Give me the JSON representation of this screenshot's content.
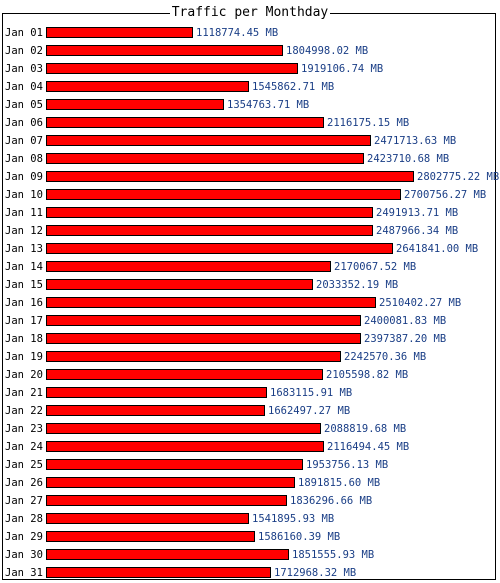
{
  "chart_data": {
    "type": "bar",
    "orientation": "horizontal",
    "title": "Traffic per Monthday",
    "categories": [
      "Jan 01",
      "Jan 02",
      "Jan 03",
      "Jan 04",
      "Jan 05",
      "Jan 06",
      "Jan 07",
      "Jan 08",
      "Jan 09",
      "Jan 10",
      "Jan 11",
      "Jan 12",
      "Jan 13",
      "Jan 14",
      "Jan 15",
      "Jan 16",
      "Jan 17",
      "Jan 18",
      "Jan 19",
      "Jan 20",
      "Jan 21",
      "Jan 22",
      "Jan 23",
      "Jan 24",
      "Jan 25",
      "Jan 26",
      "Jan 27",
      "Jan 28",
      "Jan 29",
      "Jan 30",
      "Jan 31"
    ],
    "values": [
      1118774.45,
      1804998.02,
      1919106.74,
      1545862.71,
      1354763.71,
      2116175.15,
      2471713.63,
      2423710.68,
      2802775.22,
      2700756.27,
      2491913.71,
      2487966.34,
      2641841.0,
      2170067.52,
      2033352.19,
      2510402.27,
      2400081.83,
      2397387.2,
      2242570.36,
      2105598.82,
      1683115.91,
      1662497.27,
      2088819.68,
      2116494.45,
      1953756.13,
      1891815.6,
      1836296.66,
      1541895.93,
      1586160.39,
      1851555.93,
      1712968.32
    ],
    "value_labels": [
      "1118774.45 MB",
      "1804998.02 MB",
      "1919106.74 MB",
      "1545862.71 MB",
      "1354763.71 MB",
      "2116175.15 MB",
      "2471713.63 MB",
      "2423710.68 MB",
      "2802775.22 MB",
      "2700756.27 MB",
      "2491913.71 MB",
      "2487966.34 MB",
      "2641841.00 MB",
      "2170067.52 MB",
      "2033352.19 MB",
      "2510402.27 MB",
      "2400081.83 MB",
      "2397387.20 MB",
      "2242570.36 MB",
      "2105598.82 MB",
      "1683115.91 MB",
      "1662497.27 MB",
      "2088819.68 MB",
      "2116494.45 MB",
      "1953756.13 MB",
      "1891815.60 MB",
      "1836296.66 MB",
      "1541895.93 MB",
      "1586160.39 MB",
      "1851555.93 MB",
      "1712968.32 MB"
    ],
    "unit": "MB",
    "grid": false,
    "legend": "none"
  },
  "colors": {
    "bar_fill": "#ff0000",
    "bar_outline": "#000000",
    "value_text": "#1a3e86",
    "label_text": "#000000",
    "background": "#ffffff"
  }
}
